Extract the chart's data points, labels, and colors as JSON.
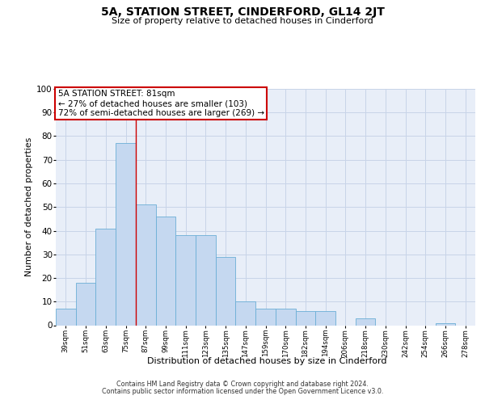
{
  "title": "5A, STATION STREET, CINDERFORD, GL14 2JT",
  "subtitle": "Size of property relative to detached houses in Cinderford",
  "xlabel": "Distribution of detached houses by size in Cinderford",
  "ylabel": "Number of detached properties",
  "categories": [
    "39sqm",
    "51sqm",
    "63sqm",
    "75sqm",
    "87sqm",
    "99sqm",
    "111sqm",
    "123sqm",
    "135sqm",
    "147sqm",
    "159sqm",
    "170sqm",
    "182sqm",
    "194sqm",
    "206sqm",
    "218sqm",
    "230sqm",
    "242sqm",
    "254sqm",
    "266sqm",
    "278sqm"
  ],
  "values": [
    7,
    18,
    41,
    77,
    51,
    46,
    38,
    38,
    29,
    10,
    7,
    7,
    6,
    6,
    0,
    3,
    0,
    0,
    0,
    1,
    0
  ],
  "bar_color": "#c5d8f0",
  "bar_edge_color": "#6baed6",
  "grid_color": "#c8d4e8",
  "background_color": "#e8eef8",
  "annotation_box_text": "5A STATION STREET: 81sqm\n← 27% of detached houses are smaller (103)\n72% of semi-detached houses are larger (269) →",
  "annotation_box_color": "white",
  "annotation_box_edge_color": "#cc0000",
  "red_line_bar_index": 4,
  "ylim": [
    0,
    100
  ],
  "yticks": [
    0,
    10,
    20,
    30,
    40,
    50,
    60,
    70,
    80,
    90,
    100
  ],
  "footer_line1": "Contains HM Land Registry data © Crown copyright and database right 2024.",
  "footer_line2": "Contains public sector information licensed under the Open Government Licence v3.0."
}
